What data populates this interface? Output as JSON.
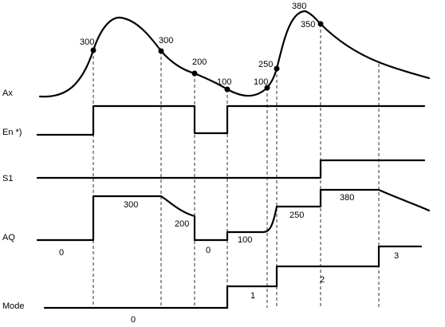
{
  "signals": [
    {
      "id": "ax",
      "label": "Ax"
    },
    {
      "id": "en",
      "label": "En *)"
    },
    {
      "id": "s1",
      "label": "S1"
    },
    {
      "id": "aq",
      "label": "AQ"
    },
    {
      "id": "mode",
      "label": "Mode"
    }
  ],
  "ax_values": [
    "300",
    "300",
    "200",
    "100",
    "100",
    "250",
    "380",
    "350"
  ],
  "aq_values": [
    "0",
    "300",
    "200",
    "0",
    "100",
    "250",
    "380"
  ],
  "mode_values": [
    "0",
    "1",
    "2",
    "3"
  ]
}
